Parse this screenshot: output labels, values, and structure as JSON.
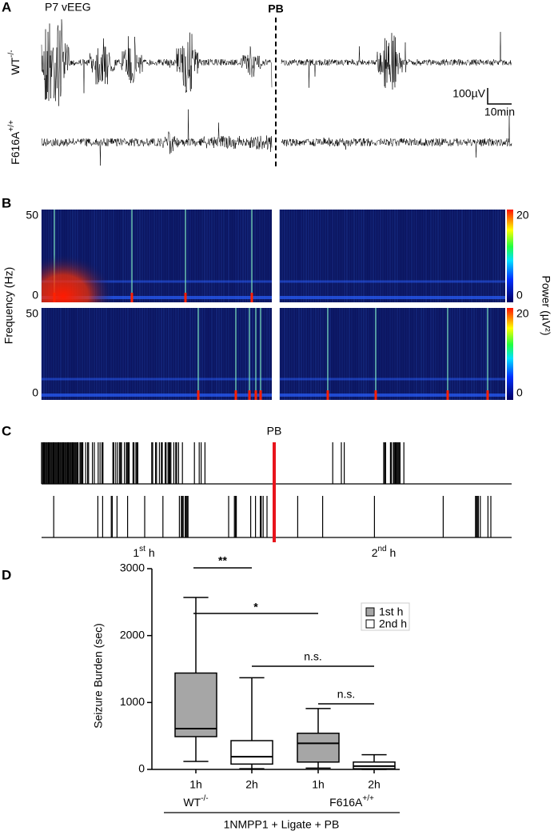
{
  "chart_data": [
    {
      "type": "trace",
      "label": "A",
      "title": "P7 vEEG",
      "marker": "PB",
      "rows": [
        {
          "base": "WT",
          "sup": "-/-"
        },
        {
          "base": "F616A",
          "sup": "+/+"
        }
      ],
      "scale_y": "100µV",
      "scale_x": "10min"
    },
    {
      "type": "spectrogram",
      "label": "B",
      "ylabel": "Frequency (Hz)",
      "ylim": [
        0,
        50
      ],
      "yticks": [
        0,
        50
      ],
      "colorbar_label": "Power (µV²)",
      "clim": [
        0,
        20
      ],
      "cticks": [
        0,
        20
      ]
    },
    {
      "type": "raster",
      "label": "C",
      "marker": "PB",
      "marker_color": "#e8141c",
      "periods": [
        {
          "base": "1",
          "sup": "st",
          "tail": " h"
        },
        {
          "base": "2",
          "sup": "nd",
          "tail": " h"
        }
      ]
    },
    {
      "type": "box",
      "label": "D",
      "ylabel": "Seizure Burden (sec)",
      "ylim": [
        0,
        3000
      ],
      "yticks": [
        0,
        1000,
        2000,
        3000
      ],
      "categories": [
        "1h",
        "2h"
      ],
      "groups": [
        {
          "base": "WT",
          "sup": "-/-"
        },
        {
          "base": "F616A",
          "sup": "+/+"
        }
      ],
      "xlabel": "1NMPP1 + Ligate + PB",
      "series": [
        {
          "name": "1st h",
          "color": "#a6a6a6",
          "boxes": [
            {
              "min": 120,
              "q1": 490,
              "median": 610,
              "q3": 1440,
              "max": 2570
            },
            {
              "min": 20,
              "q1": 110,
              "median": 390,
              "q3": 540,
              "max": 910
            }
          ]
        },
        {
          "name": "2nd h",
          "color": "#ffffff",
          "boxes": [
            {
              "min": 10,
              "q1": 80,
              "median": 190,
              "q3": 430,
              "max": 1370
            },
            {
              "min": 0,
              "q1": 10,
              "median": 50,
              "q3": 110,
              "max": 220
            }
          ]
        }
      ],
      "annotations": [
        "**",
        "*",
        "n.s.",
        "n.s."
      ]
    }
  ]
}
